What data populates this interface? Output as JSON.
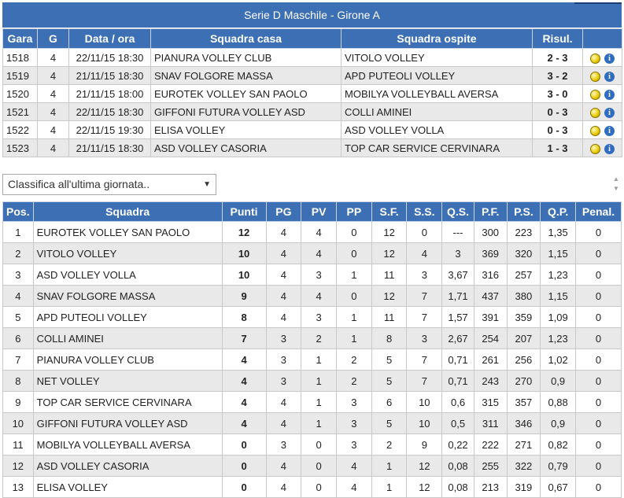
{
  "banner": {
    "title": "Serie D Maschile - Girone A"
  },
  "matches": {
    "headers": [
      "Gara",
      "G",
      "Data / ora",
      "Squadra casa",
      "Squadra ospite",
      "Risul."
    ],
    "rows": [
      {
        "gara": "1518",
        "g": "4",
        "data": "22/11/15 18:30",
        "casa": "PIANURA VOLLEY CLUB",
        "ospite": "VITOLO VOLLEY",
        "risultato": "2 - 3"
      },
      {
        "gara": "1519",
        "g": "4",
        "data": "21/11/15 18:30",
        "casa": "SNAV FOLGORE MASSA",
        "ospite": "APD PUTEOLI VOLLEY",
        "risultato": "3 - 2"
      },
      {
        "gara": "1520",
        "g": "4",
        "data": "21/11/15 18:00",
        "casa": "EUROTEK VOLLEY SAN PAOLO",
        "ospite": "MOBILYA VOLLEYBALL AVERSA",
        "risultato": "3 - 0"
      },
      {
        "gara": "1521",
        "g": "4",
        "data": "22/11/15 18:30",
        "casa": "GIFFONI FUTURA VOLLEY ASD",
        "ospite": "COLLI AMINEI",
        "risultato": "0 - 3"
      },
      {
        "gara": "1522",
        "g": "4",
        "data": "22/11/15 19:30",
        "casa": "ELISA VOLLEY",
        "ospite": "ASD VOLLEY VOLLA",
        "risultato": "0 - 3"
      },
      {
        "gara": "1523",
        "g": "4",
        "data": "21/11/15 18:30",
        "casa": "ASD VOLLEY CASORIA",
        "ospite": "TOP CAR SERVICE CERVINARA",
        "risultato": "1 - 3"
      }
    ],
    "icons": [
      "volleyball-icon",
      "info-icon"
    ]
  },
  "select": {
    "value": "Classifica all'ultima giornata.."
  },
  "standings": {
    "headers": [
      "Pos.",
      "Squadra",
      "Punti",
      "PG",
      "PV",
      "PP",
      "S.F.",
      "S.S.",
      "Q.S.",
      "P.F.",
      "P.S.",
      "Q.P.",
      "Penal."
    ],
    "rows": [
      [
        "1",
        "EUROTEK VOLLEY SAN PAOLO",
        "12",
        "4",
        "4",
        "0",
        "12",
        "0",
        "---",
        "300",
        "223",
        "1,35",
        "0"
      ],
      [
        "2",
        "VITOLO VOLLEY",
        "10",
        "4",
        "4",
        "0",
        "12",
        "4",
        "3",
        "369",
        "320",
        "1,15",
        "0"
      ],
      [
        "3",
        "ASD VOLLEY VOLLA",
        "10",
        "4",
        "3",
        "1",
        "11",
        "3",
        "3,67",
        "316",
        "257",
        "1,23",
        "0"
      ],
      [
        "4",
        "SNAV FOLGORE MASSA",
        "9",
        "4",
        "4",
        "0",
        "12",
        "7",
        "1,71",
        "437",
        "380",
        "1,15",
        "0"
      ],
      [
        "5",
        "APD PUTEOLI VOLLEY",
        "8",
        "4",
        "3",
        "1",
        "11",
        "7",
        "1,57",
        "391",
        "359",
        "1,09",
        "0"
      ],
      [
        "6",
        "COLLI AMINEI",
        "7",
        "3",
        "2",
        "1",
        "8",
        "3",
        "2,67",
        "254",
        "207",
        "1,23",
        "0"
      ],
      [
        "7",
        "PIANURA VOLLEY CLUB",
        "4",
        "3",
        "1",
        "2",
        "5",
        "7",
        "0,71",
        "261",
        "256",
        "1,02",
        "0"
      ],
      [
        "8",
        "NET VOLLEY",
        "4",
        "3",
        "1",
        "2",
        "5",
        "7",
        "0,71",
        "243",
        "270",
        "0,9",
        "0"
      ],
      [
        "9",
        "TOP CAR SERVICE CERVINARA",
        "4",
        "4",
        "1",
        "3",
        "6",
        "10",
        "0,6",
        "315",
        "357",
        "0,88",
        "0"
      ],
      [
        "10",
        "GIFFONI FUTURA VOLLEY ASD",
        "4",
        "4",
        "1",
        "3",
        "5",
        "10",
        "0,5",
        "311",
        "346",
        "0,9",
        "0"
      ],
      [
        "11",
        "MOBILYA VOLLEYBALL AVERSA",
        "0",
        "3",
        "0",
        "3",
        "2",
        "9",
        "0,22",
        "222",
        "271",
        "0,82",
        "0"
      ],
      [
        "12",
        "ASD VOLLEY CASORIA",
        "0",
        "4",
        "0",
        "4",
        "1",
        "12",
        "0,08",
        "255",
        "322",
        "0,79",
        "0"
      ],
      [
        "13",
        "ELISA VOLLEY",
        "0",
        "4",
        "0",
        "4",
        "1",
        "12",
        "0,08",
        "213",
        "319",
        "0,67",
        "0"
      ]
    ]
  },
  "colors": {
    "header_bg": "#3c6fb4",
    "row_alt": "#e9e9e9"
  }
}
